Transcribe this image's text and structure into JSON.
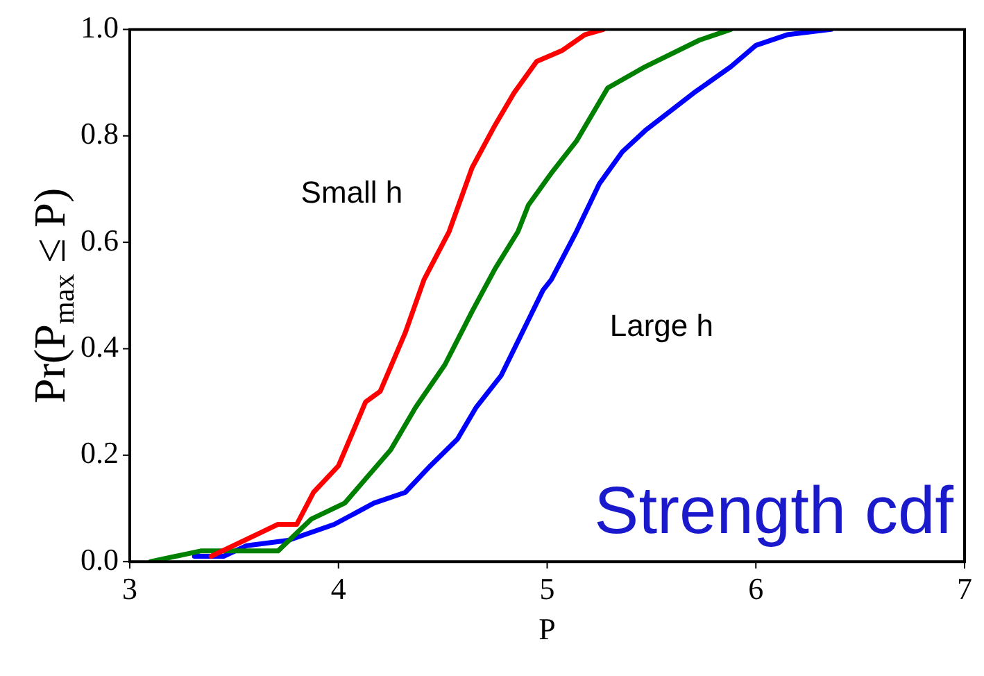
{
  "chart_data": {
    "type": "line",
    "xlabel": "P",
    "ylabel": "Pr(P$_{max}$ ≤ P)",
    "xlim": [
      3,
      7
    ],
    "xticks": [
      3,
      4,
      5,
      6,
      7
    ],
    "ylim": [
      0,
      1
    ],
    "yticks": [
      {
        "value": 0,
        "label": "0.0"
      },
      {
        "value": 0.2,
        "label": "0.2"
      },
      {
        "value": 0.4,
        "label": "0.4"
      },
      {
        "value": 0.6,
        "label": "0.6"
      },
      {
        "value": 0.8,
        "label": "0.8"
      },
      {
        "value": 1,
        "label": "1.0"
      }
    ],
    "grid": false,
    "legend": false,
    "marker": "none",
    "line_style": "solid",
    "series": [
      {
        "color": "#ff0000",
        "x": [
          3.39,
          3.71,
          3.8,
          3.88,
          4.0,
          4.13,
          4.2,
          4.32,
          4.41,
          4.53,
          4.64,
          4.75,
          4.84,
          4.95,
          5.07,
          5.18,
          5.27
        ],
        "values": [
          0.01,
          0.07,
          0.07,
          0.13,
          0.18,
          0.3,
          0.32,
          0.43,
          0.53,
          0.62,
          0.74,
          0.82,
          0.88,
          0.94,
          0.96,
          0.99,
          1.0
        ]
      },
      {
        "color": "#008000",
        "x": [
          3.1,
          3.34,
          3.71,
          3.87,
          4.03,
          4.14,
          4.25,
          4.37,
          4.51,
          4.64,
          4.75,
          4.86,
          4.91,
          5.02,
          5.14,
          5.29,
          5.47,
          5.73,
          5.88
        ],
        "values": [
          0.0,
          0.02,
          0.02,
          0.08,
          0.11,
          0.16,
          0.21,
          0.29,
          0.37,
          0.47,
          0.55,
          0.62,
          0.67,
          0.73,
          0.79,
          0.89,
          0.93,
          0.98,
          1.0
        ]
      },
      {
        "color": "#0000ff",
        "x": [
          3.31,
          3.45,
          3.56,
          3.76,
          3.98,
          4.17,
          4.32,
          4.44,
          4.57,
          4.66,
          4.78,
          4.88,
          4.98,
          5.02,
          5.14,
          5.25,
          5.36,
          5.47,
          5.7,
          5.88,
          6.0,
          6.15,
          6.36
        ],
        "values": [
          0.01,
          0.01,
          0.03,
          0.04,
          0.07,
          0.11,
          0.13,
          0.18,
          0.23,
          0.29,
          0.35,
          0.43,
          0.51,
          0.53,
          0.62,
          0.71,
          0.77,
          0.81,
          0.88,
          0.93,
          0.97,
          0.99,
          1.0
        ]
      }
    ],
    "annotations": [
      "Small h",
      "Large h",
      "Strength cdf"
    ]
  }
}
